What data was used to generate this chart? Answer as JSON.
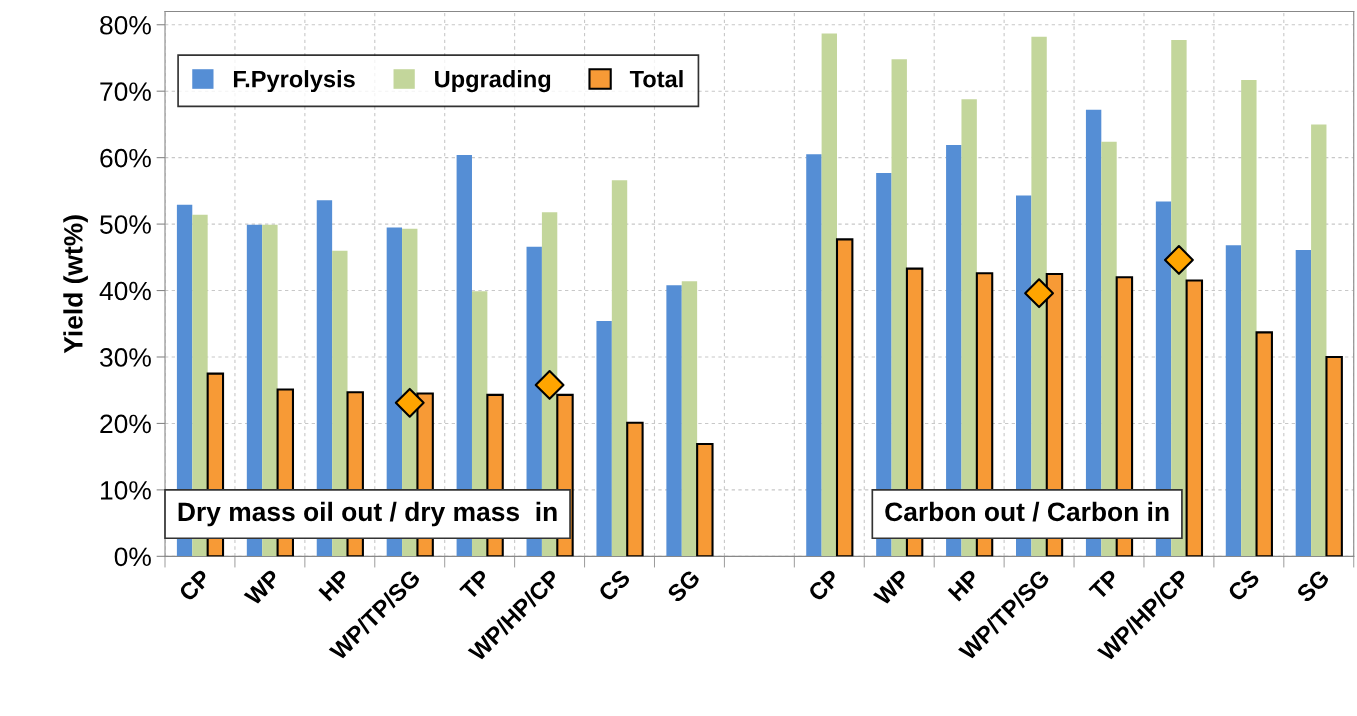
{
  "chart_data": {
    "type": "bar",
    "ylabel": "Yield (wt%)",
    "categories": [
      "CP",
      "WP",
      "HP",
      "WP/TP/SG",
      "TP",
      "WP/HP/CP",
      "CS",
      "SG",
      null,
      "CP",
      "WP",
      "HP",
      "WP/TP/SG",
      "TP",
      "WP/HP/CP",
      "CS",
      "SG"
    ],
    "series": [
      {
        "name": "F.Pyrolysis",
        "color": "#558ed5",
        "values": [
          52.9,
          49.9,
          53.6,
          49.5,
          60.4,
          46.6,
          35.4,
          40.8,
          null,
          60.5,
          57.7,
          61.9,
          54.3,
          67.2,
          53.4,
          46.8,
          46.1
        ]
      },
      {
        "name": "Upgrading",
        "color": "#c3d69b",
        "values": [
          51.4,
          49.9,
          46.0,
          49.3,
          39.9,
          51.8,
          56.6,
          41.4,
          null,
          78.7,
          74.8,
          68.8,
          78.2,
          62.4,
          77.7,
          71.7,
          65.0
        ]
      },
      {
        "name": "Total",
        "color": "#f79a36",
        "values": [
          27.5,
          25.1,
          24.7,
          24.5,
          24.3,
          24.3,
          20.1,
          16.9,
          null,
          47.7,
          43.3,
          42.6,
          42.5,
          42.0,
          41.5,
          33.7,
          30.0
        ]
      },
      {
        "type": "scatter",
        "color": "#ffa500",
        "marker": "diamond",
        "values": [
          null,
          null,
          null,
          23.1,
          null,
          25.8,
          null,
          null,
          null,
          null,
          null,
          null,
          39.6,
          null,
          44.6,
          null,
          null
        ]
      }
    ],
    "ylim": [
      0,
      82
    ],
    "yticks": [
      {
        "value": 0,
        "label": "0%"
      },
      {
        "value": 10,
        "label": "10%"
      },
      {
        "value": 20,
        "label": "20%"
      },
      {
        "value": 30,
        "label": "30%"
      },
      {
        "value": 40,
        "label": "40%"
      },
      {
        "value": 50,
        "label": "50%"
      },
      {
        "value": 60,
        "label": "60%"
      },
      {
        "value": 70,
        "label": "70%"
      },
      {
        "value": 80,
        "label": "80%"
      }
    ],
    "grid": true,
    "legend": "top left",
    "annotations": [
      "Dry mass oil out / dry mass  in",
      "Carbon out / Carbon in"
    ]
  }
}
